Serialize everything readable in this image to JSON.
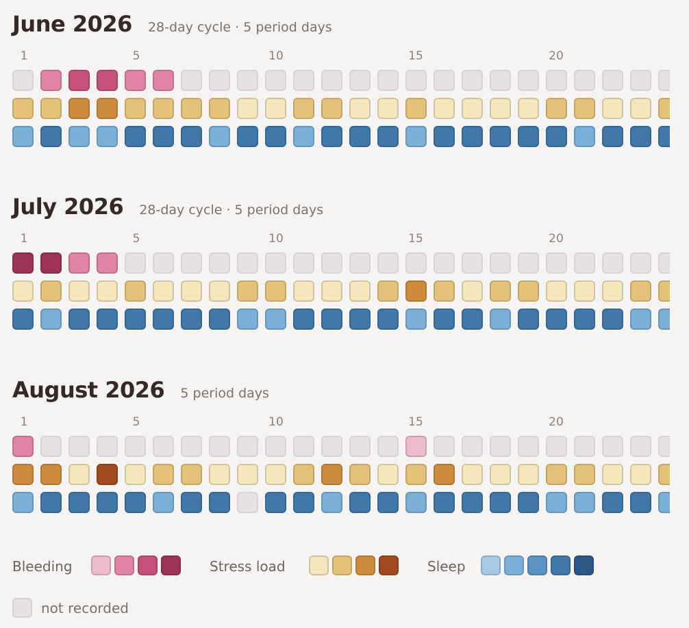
{
  "colors": {
    "none": "#e4e1e0",
    "bleeding": [
      "#ecbccd",
      "#e083a6",
      "#c74f7b",
      "#9e3358"
    ],
    "stress": [
      "#f5e7bc",
      "#e4c27a",
      "#cf8b3d",
      "#a1491f"
    ],
    "sleep": [
      "#a6c9e6",
      "#7ab0d7",
      "#5b93c2",
      "#3f78a9",
      "#2c5a86"
    ]
  },
  "tick_labels": [
    "1",
    "5",
    "10",
    "15",
    "20"
  ],
  "months": [
    {
      "title": "June 2026",
      "subtitle": "28-day cycle · 5 period days",
      "bleeding": [
        0,
        2,
        3,
        3,
        2,
        2,
        0,
        0,
        0,
        0,
        0,
        0,
        0,
        0,
        0,
        0,
        0,
        0,
        0,
        0,
        0,
        0,
        0,
        0
      ],
      "stress": [
        2,
        2,
        3,
        3,
        2,
        2,
        2,
        2,
        1,
        1,
        2,
        2,
        1,
        1,
        2,
        1,
        1,
        1,
        1,
        2,
        2,
        1,
        1,
        2
      ],
      "sleep": [
        2,
        4,
        2,
        2,
        4,
        4,
        4,
        2,
        4,
        4,
        2,
        4,
        4,
        4,
        2,
        4,
        4,
        4,
        4,
        4,
        2,
        4,
        4,
        4
      ]
    },
    {
      "title": "July 2026",
      "subtitle": "28-day cycle · 5 period days",
      "bleeding": [
        4,
        4,
        2,
        2,
        0,
        0,
        0,
        0,
        0,
        0,
        0,
        0,
        0,
        0,
        0,
        0,
        0,
        0,
        0,
        0,
        0,
        0,
        0,
        0
      ],
      "stress": [
        1,
        2,
        1,
        1,
        2,
        1,
        1,
        1,
        2,
        2,
        1,
        1,
        1,
        2,
        3,
        2,
        1,
        2,
        2,
        1,
        1,
        1,
        2,
        2
      ],
      "sleep": [
        4,
        2,
        4,
        4,
        4,
        4,
        4,
        4,
        2,
        2,
        4,
        4,
        4,
        4,
        2,
        4,
        4,
        2,
        4,
        4,
        4,
        4,
        2,
        2
      ]
    },
    {
      "title": "August 2026",
      "subtitle": "5 period days",
      "bleeding": [
        2,
        0,
        0,
        0,
        0,
        0,
        0,
        0,
        0,
        0,
        0,
        0,
        0,
        0,
        1,
        0,
        0,
        0,
        0,
        0,
        0,
        0,
        0,
        0
      ],
      "stress": [
        3,
        3,
        1,
        4,
        1,
        2,
        2,
        1,
        1,
        1,
        2,
        3,
        2,
        1,
        2,
        3,
        1,
        1,
        1,
        2,
        2,
        1,
        1,
        2
      ],
      "sleep": [
        2,
        4,
        4,
        4,
        4,
        2,
        4,
        4,
        0,
        4,
        4,
        2,
        4,
        4,
        2,
        4,
        4,
        4,
        4,
        2,
        2,
        4,
        4,
        2
      ]
    }
  ],
  "legend": {
    "bleeding_label": "Bleeding",
    "stress_label": "Stress load",
    "sleep_label": "Sleep",
    "not_recorded_label": "not recorded"
  }
}
